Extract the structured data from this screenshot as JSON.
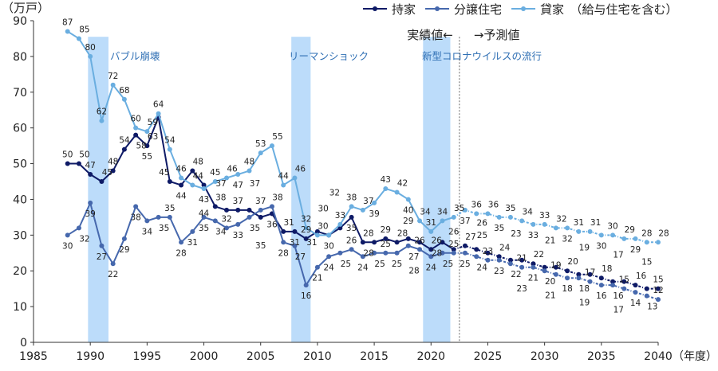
{
  "chart_data": {
    "type": "line",
    "ylabel": "（万戸）",
    "xlabel": "（年度）",
    "xlim": [
      1985,
      2040
    ],
    "ylim": [
      0,
      90
    ],
    "x_ticks": [
      1985,
      1990,
      1995,
      2000,
      2005,
      2010,
      2015,
      2020,
      2025,
      2030,
      2035,
      2040
    ],
    "y_ticks": [
      0,
      10,
      20,
      30,
      40,
      50,
      60,
      70,
      80,
      90
    ],
    "actual_years": [
      1988,
      2022
    ],
    "forecast_years": [
      2023,
      2040
    ],
    "actual_label": "実績値←",
    "forecast_label": "→予測値",
    "legend_position": "top-right",
    "series": [
      {
        "name": "持家",
        "color": "#0e1a66",
        "actual": [
          50,
          50,
          47,
          45,
          48,
          54,
          58,
          55,
          63,
          45,
          44,
          48,
          44,
          38,
          37,
          37,
          37,
          35,
          36,
          31,
          31,
          29,
          31,
          30,
          32,
          35,
          28,
          28,
          29,
          28,
          29,
          28,
          26,
          28,
          26
        ],
        "forecast": [
          27,
          26,
          25,
          24,
          23,
          23,
          22,
          21,
          21,
          20,
          19,
          19,
          18,
          17,
          17,
          16,
          15,
          15
        ]
      },
      {
        "name": "分譲住宅",
        "color": "#4668ad",
        "actual": [
          30,
          32,
          39,
          27,
          22,
          29,
          38,
          34,
          35,
          35,
          28,
          31,
          35,
          34,
          32,
          33,
          35,
          37,
          38,
          28,
          27,
          16,
          21,
          24,
          25,
          26,
          24,
          25,
          25,
          25,
          27,
          26,
          24,
          25,
          25
        ],
        "forecast": [
          25,
          24,
          23,
          23,
          22,
          21,
          21,
          20,
          19,
          18,
          18,
          17,
          16,
          16,
          15,
          14,
          13,
          12
        ]
      },
      {
        "name": "貸家　（給与住宅を含む）",
        "color": "#6aaee0",
        "actual": [
          87,
          85,
          80,
          62,
          72,
          68,
          60,
          59,
          64,
          54,
          46,
          44,
          43,
          45,
          46,
          47,
          48,
          53,
          55,
          44,
          46,
          32,
          30,
          30,
          33,
          38,
          37,
          39,
          43,
          42,
          40,
          34,
          31,
          34,
          35
        ],
        "forecast": [
          37,
          36,
          36,
          35,
          35,
          34,
          33,
          33,
          32,
          32,
          31,
          31,
          30,
          30,
          29,
          29,
          28,
          28
        ]
      }
    ],
    "annotations": [
      {
        "label": "バブル崩壊",
        "from": 1989.8,
        "to": 1991.6
      },
      {
        "label": "リーマンショック",
        "from": 2007.7,
        "to": 2009.4
      },
      {
        "label": "新型コロナウイルスの流行",
        "from": 2019.3,
        "to": 2021.7
      }
    ],
    "band_color": "#bcdcfa",
    "annotation_color": "#2f6fb4"
  }
}
